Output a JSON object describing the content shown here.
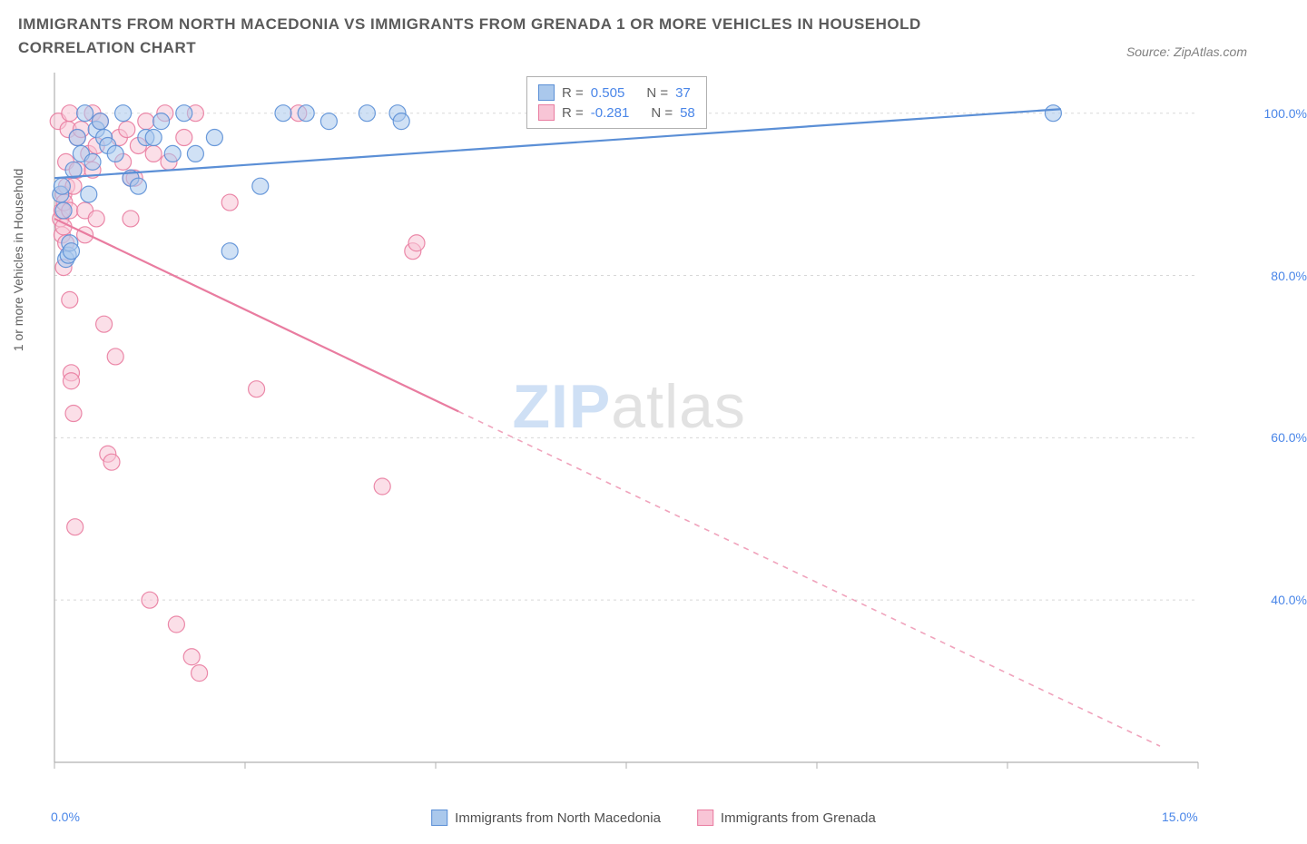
{
  "header": {
    "title": "IMMIGRANTS FROM NORTH MACEDONIA VS IMMIGRANTS FROM GRENADA 1 OR MORE VEHICLES IN HOUSEHOLD CORRELATION CHART",
    "source": "Source: ZipAtlas.com"
  },
  "watermark": {
    "part1": "ZIP",
    "part2": "atlas"
  },
  "chart": {
    "type": "scatter",
    "y_axis_label": "1 or more Vehicles in Household",
    "x_range": [
      0,
      15
    ],
    "y_range": [
      20,
      105
    ],
    "x_ticks": [
      0,
      2.5,
      5,
      7.5,
      10,
      12.5,
      15
    ],
    "x_tick_labels": {
      "0": "0.0%",
      "15": "15.0%"
    },
    "y_ticks": [
      40,
      60,
      80,
      100
    ],
    "y_tick_labels": [
      "40.0%",
      "60.0%",
      "80.0%",
      "100.0%"
    ],
    "grid_color": "#d8d8d8",
    "axis_color": "#b0b0b0",
    "background_color": "#ffffff",
    "tick_label_color": "#4a86e8",
    "label_fontsize": 14
  },
  "series_a": {
    "name": "Immigrants from North Macedonia",
    "color_stroke": "#5b8fd6",
    "color_fill": "#aac8ec",
    "marker_radius": 9,
    "marker_opacity": 0.55,
    "R": "0.505",
    "N": "37",
    "trend": {
      "x1": 0,
      "y1": 92,
      "x2": 13.2,
      "y2": 100.5,
      "dash_after_x": null
    },
    "points": [
      [
        0.08,
        90
      ],
      [
        0.1,
        91
      ],
      [
        0.12,
        88
      ],
      [
        0.15,
        82
      ],
      [
        0.18,
        82.5
      ],
      [
        0.2,
        84
      ],
      [
        0.22,
        83
      ],
      [
        0.25,
        93
      ],
      [
        0.3,
        97
      ],
      [
        0.35,
        95
      ],
      [
        0.4,
        100
      ],
      [
        0.45,
        90
      ],
      [
        0.5,
        94
      ],
      [
        0.55,
        98
      ],
      [
        0.6,
        99
      ],
      [
        0.65,
        97
      ],
      [
        0.7,
        96
      ],
      [
        0.8,
        95
      ],
      [
        0.9,
        100
      ],
      [
        1.0,
        92
      ],
      [
        1.1,
        91
      ],
      [
        1.2,
        97
      ],
      [
        1.3,
        97
      ],
      [
        1.4,
        99
      ],
      [
        1.55,
        95
      ],
      [
        1.7,
        100
      ],
      [
        1.85,
        95
      ],
      [
        2.1,
        97
      ],
      [
        2.3,
        83
      ],
      [
        2.7,
        91
      ],
      [
        3.0,
        100
      ],
      [
        3.3,
        100
      ],
      [
        3.6,
        99
      ],
      [
        4.1,
        100
      ],
      [
        4.5,
        100
      ],
      [
        4.55,
        99
      ],
      [
        13.1,
        100
      ]
    ]
  },
  "series_b": {
    "name": "Immigrants from Grenada",
    "color_stroke": "#e97ca0",
    "color_fill": "#f8c5d6",
    "marker_radius": 9,
    "marker_opacity": 0.55,
    "R": "-0.281",
    "N": "58",
    "trend": {
      "x1": 0,
      "y1": 87,
      "x2": 14.5,
      "y2": 22,
      "dash_after_x": 5.3
    },
    "points": [
      [
        0.05,
        99
      ],
      [
        0.08,
        87
      ],
      [
        0.1,
        88
      ],
      [
        0.1,
        85
      ],
      [
        0.12,
        90
      ],
      [
        0.12,
        86
      ],
      [
        0.12,
        81
      ],
      [
        0.13,
        89
      ],
      [
        0.15,
        94
      ],
      [
        0.15,
        84
      ],
      [
        0.16,
        91
      ],
      [
        0.18,
        98
      ],
      [
        0.2,
        100
      ],
      [
        0.2,
        88
      ],
      [
        0.2,
        77
      ],
      [
        0.22,
        68
      ],
      [
        0.22,
        67
      ],
      [
        0.25,
        91
      ],
      [
        0.25,
        63
      ],
      [
        0.27,
        49
      ],
      [
        0.3,
        97
      ],
      [
        0.3,
        93
      ],
      [
        0.35,
        98
      ],
      [
        0.4,
        88
      ],
      [
        0.4,
        85
      ],
      [
        0.45,
        95
      ],
      [
        0.5,
        100
      ],
      [
        0.5,
        93
      ],
      [
        0.55,
        96
      ],
      [
        0.55,
        87
      ],
      [
        0.6,
        99
      ],
      [
        0.65,
        74
      ],
      [
        0.7,
        58
      ],
      [
        0.75,
        57
      ],
      [
        0.8,
        70
      ],
      [
        0.85,
        97
      ],
      [
        0.9,
        94
      ],
      [
        0.95,
        98
      ],
      [
        1.0,
        92
      ],
      [
        1.0,
        87
      ],
      [
        1.05,
        92
      ],
      [
        1.1,
        96
      ],
      [
        1.2,
        99
      ],
      [
        1.25,
        40
      ],
      [
        1.3,
        95
      ],
      [
        1.45,
        100
      ],
      [
        1.5,
        94
      ],
      [
        1.6,
        37
      ],
      [
        1.7,
        97
      ],
      [
        1.8,
        33
      ],
      [
        1.85,
        100
      ],
      [
        1.9,
        31
      ],
      [
        2.3,
        89
      ],
      [
        2.65,
        66
      ],
      [
        3.2,
        100
      ],
      [
        4.3,
        54
      ],
      [
        4.7,
        83
      ],
      [
        4.75,
        84
      ]
    ]
  },
  "legend_top": {
    "r_label": "R =",
    "n_label": "N ="
  },
  "legend_bottom": {
    "items": [
      "Immigrants from North Macedonia",
      "Immigrants from Grenada"
    ]
  }
}
